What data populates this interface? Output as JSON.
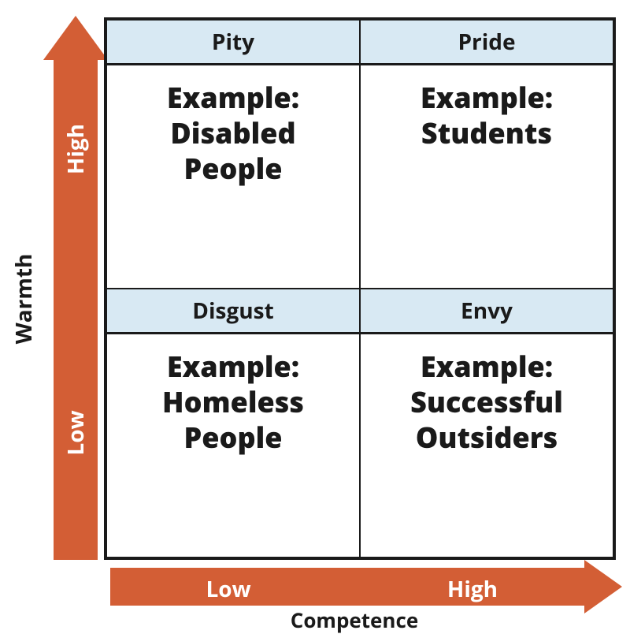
{
  "diagram": {
    "type": "2x2-matrix",
    "background_color": "#ffffff",
    "border_color": "#1a1a1a",
    "header_fill": "#d8e9f3",
    "arrow_color": "#d35e35",
    "arrow_text_color": "#ffffff",
    "text_color": "#1a1a1a",
    "title_fontsize": 28,
    "header_fontsize": 28,
    "body_fontsize": 36,
    "y_axis": {
      "title": "Warmth",
      "low_label": "Low",
      "high_label": "High",
      "direction": "up"
    },
    "x_axis": {
      "title": "Competence",
      "low_label": "Low",
      "high_label": "High",
      "direction": "right"
    },
    "cells": {
      "top_left": {
        "header": "Pity",
        "example_prefix": "Example:",
        "example_line1": "Disabled",
        "example_line2": "People"
      },
      "top_right": {
        "header": "Pride",
        "example_prefix": "Example:",
        "example_line1": "Students",
        "example_line2": ""
      },
      "bottom_left": {
        "header": "Disgust",
        "example_prefix": "Example:",
        "example_line1": "Homeless",
        "example_line2": "People"
      },
      "bottom_right": {
        "header": "Envy",
        "example_prefix": "Example:",
        "example_line1": "Successful",
        "example_line2": "Outsiders"
      }
    }
  }
}
